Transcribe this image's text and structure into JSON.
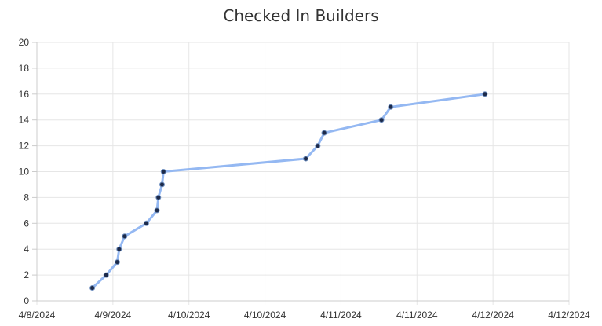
{
  "chart_data": {
    "type": "line",
    "title": "Checked In Builders",
    "xlabel": "",
    "ylabel": "",
    "x_axis": {
      "type": "date",
      "ticks": [
        "4/8/2024",
        "4/9/2024",
        "4/10/2024",
        "4/10/2024",
        "4/11/2024",
        "4/11/2024",
        "4/12/2024",
        "4/12/2024"
      ],
      "range": [
        "2024-04-08T00:00",
        "2024-04-12T00:00"
      ]
    },
    "ylim": [
      0,
      20
    ],
    "yticks": [
      0,
      2,
      4,
      6,
      8,
      10,
      12,
      14,
      16,
      18,
      20
    ],
    "grid": true,
    "legend": "none",
    "line_color": "#94b8f2",
    "marker_color": "#1c2a4a",
    "series": [
      {
        "points": [
          {
            "x": "2024-04-08T10:00",
            "y": 1
          },
          {
            "x": "2024-04-08T12:30",
            "y": 2
          },
          {
            "x": "2024-04-08T14:30",
            "y": 3
          },
          {
            "x": "2024-04-08T14:50",
            "y": 4
          },
          {
            "x": "2024-04-08T15:50",
            "y": 5
          },
          {
            "x": "2024-04-08T19:45",
            "y": 6
          },
          {
            "x": "2024-04-08T21:40",
            "y": 7
          },
          {
            "x": "2024-04-08T21:55",
            "y": 8
          },
          {
            "x": "2024-04-08T22:35",
            "y": 9
          },
          {
            "x": "2024-04-08T22:50",
            "y": 10
          },
          {
            "x": "2024-04-10T00:30",
            "y": 11
          },
          {
            "x": "2024-04-10T02:40",
            "y": 12
          },
          {
            "x": "2024-04-10T03:50",
            "y": 13
          },
          {
            "x": "2024-04-10T14:10",
            "y": 14
          },
          {
            "x": "2024-04-10T15:50",
            "y": 15
          },
          {
            "x": "2024-04-11T08:50",
            "y": 16
          }
        ]
      }
    ]
  }
}
